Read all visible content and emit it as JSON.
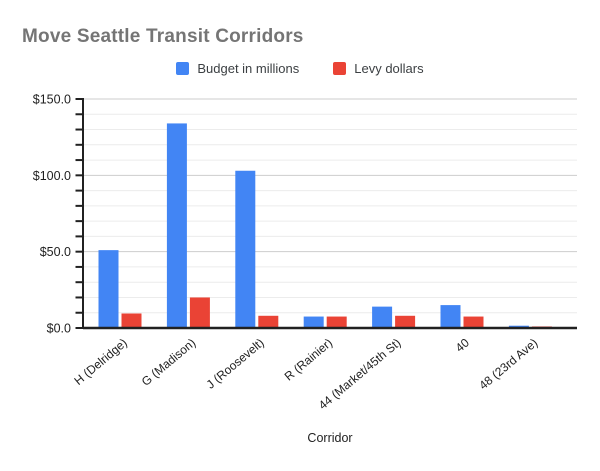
{
  "title": "Move Seattle Transit Corridors",
  "chart_data": {
    "type": "bar",
    "title": "Move Seattle Transit Corridors",
    "categories": [
      "H (Delridge)",
      "G (Madison)",
      "J (Roosevelt)",
      "R (Rainier)",
      "44 (Market/45th St)",
      "40",
      "48 (23rd Ave)"
    ],
    "series": [
      {
        "name": "Budget in millions",
        "color": "#4285f4",
        "values": [
          51,
          134,
          103,
          7.5,
          14,
          15,
          1.5
        ]
      },
      {
        "name": "Levy dollars",
        "color": "#ea4335",
        "values": [
          9.5,
          20,
          8,
          7.5,
          8,
          7.5,
          1
        ]
      }
    ],
    "xlabel": "Corridor",
    "ylabel": "",
    "ylim": [
      0,
      150
    ],
    "y_major_step": 50,
    "y_minor_step": 10,
    "y_tick_labels": [
      "$0.0",
      "$50.0",
      "$100.0",
      "$150.0"
    ],
    "grid": true,
    "legend_position": "top",
    "x_labels_rotated_deg": -40
  },
  "colors": {
    "title_text": "#757575",
    "axis_text": "#1f1f1f",
    "legend_text": "#3c4043",
    "axis_line": "#212121",
    "major_gridline": "#cdcdcd",
    "minor_gridline": "#ececec",
    "background": "#ffffff"
  }
}
